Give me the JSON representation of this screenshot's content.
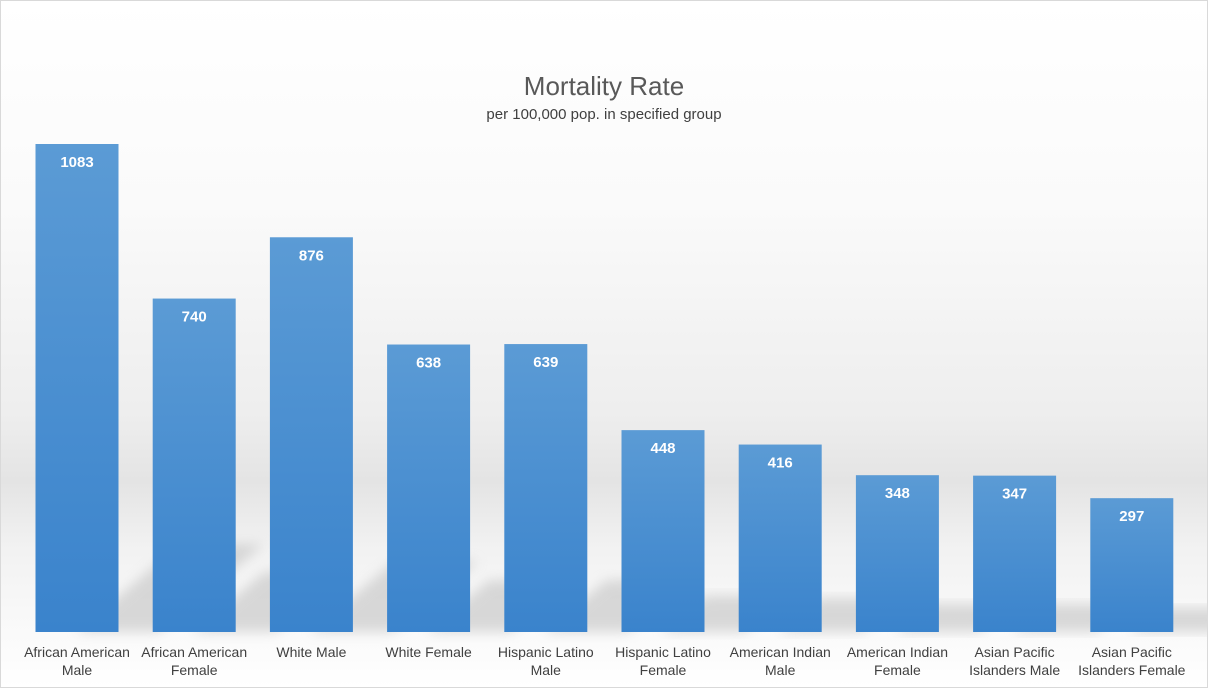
{
  "chart_data": {
    "type": "bar",
    "title": "Mortality Rate",
    "subtitle": "per 100,000 pop. in specified group",
    "categories": [
      [
        "African American",
        "Male"
      ],
      [
        "African American",
        "Female"
      ],
      [
        "White Male"
      ],
      [
        "White Female"
      ],
      [
        "Hispanic Latino",
        "Male"
      ],
      [
        "Hispanic Latino",
        "Female"
      ],
      [
        "American Indian",
        "Male"
      ],
      [
        "American Indian",
        "Female"
      ],
      [
        "Asian Pacific",
        "Islanders Male"
      ],
      [
        "Asian Pacific",
        "Islanders Female"
      ]
    ],
    "values": [
      1083,
      740,
      876,
      638,
      639,
      448,
      416,
      348,
      347,
      297
    ],
    "xlabel": "",
    "ylabel": "",
    "ylim": [
      0,
      1083
    ],
    "grid": false,
    "data_labels": true,
    "bar_color_top": "#5b9bd5",
    "bar_color_bottom": "#3a83cc"
  }
}
